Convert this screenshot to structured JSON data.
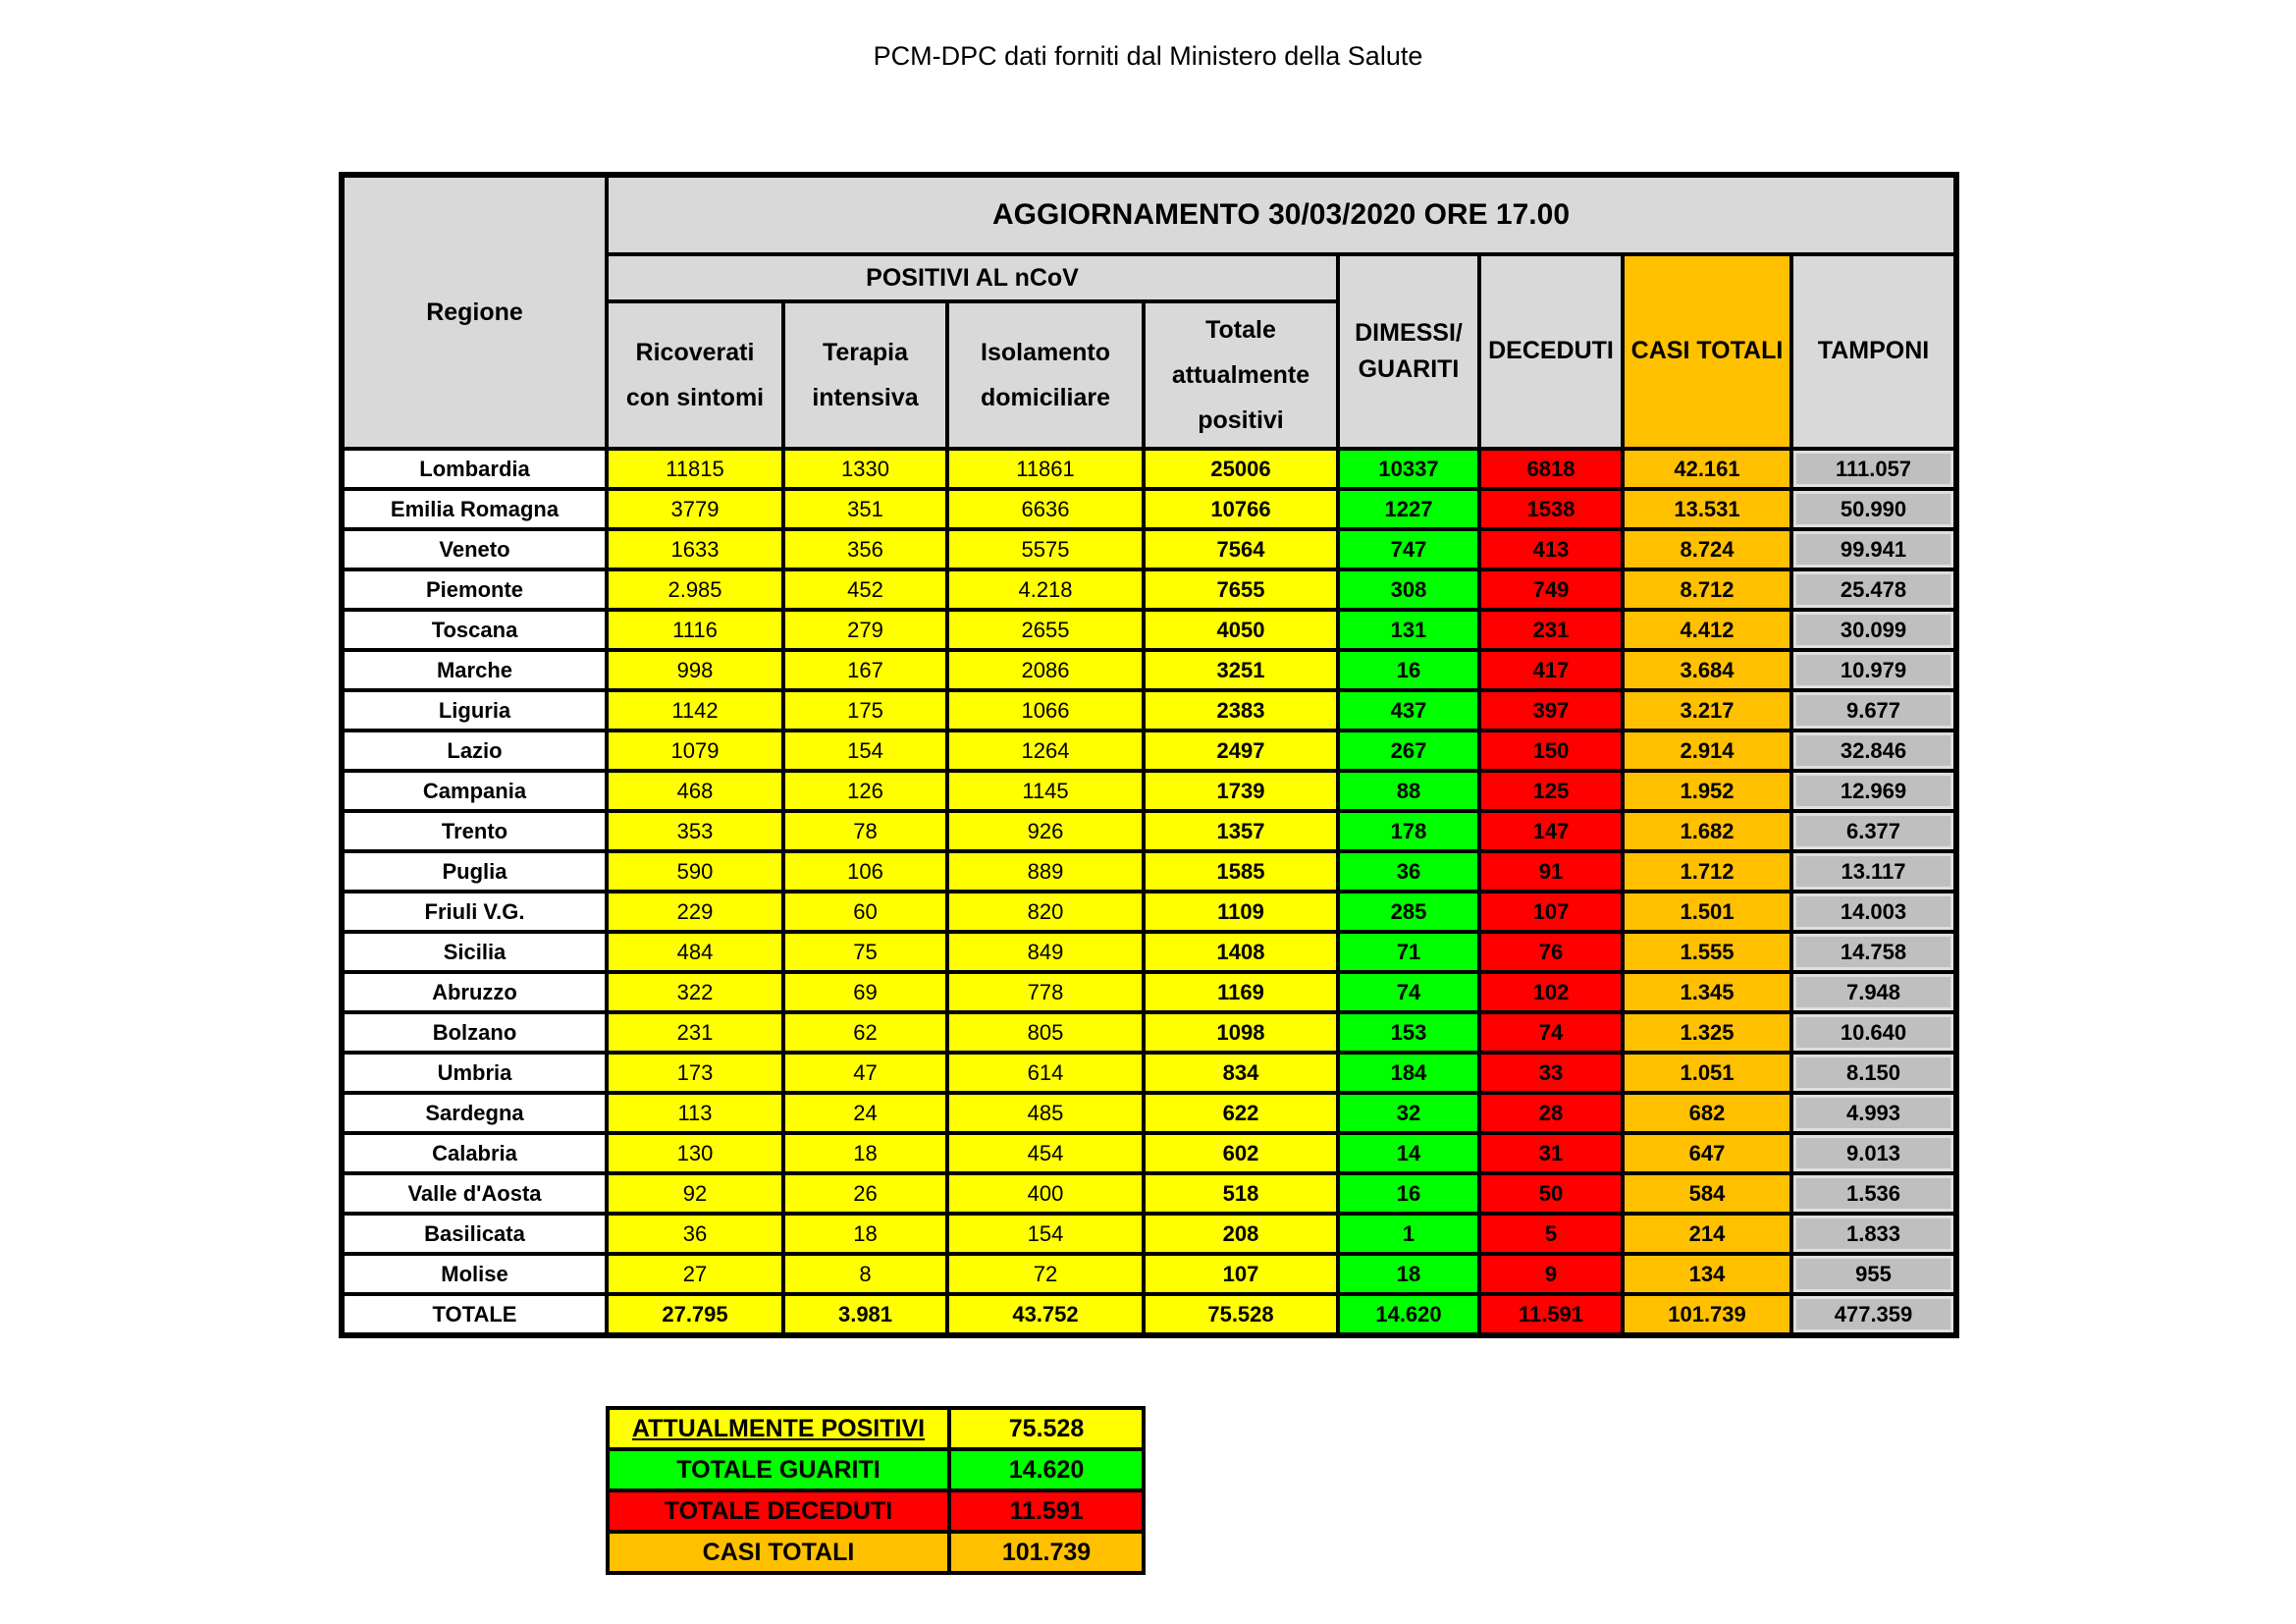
{
  "title": "PCM-DPC dati forniti dal Ministero della Salute",
  "table": {
    "update_header": "AGGIORNAMENTO 30/03/2020 ORE 17.00",
    "region_header": "Regione",
    "positivi_group_header": "POSITIVI AL nCoV",
    "subheaders": {
      "ricoverati": "Ricoverati\ncon sintomi",
      "terapia": "Terapia\nintensiva",
      "isolamento": "Isolamento\ndomiciliare",
      "totale_positivi": "Totale\nattualmente\npositivi",
      "dimessi": "DIMESSI/\nGUARITI",
      "deceduti": "DECEDUTI",
      "casi_totali": "CASI TOTALI",
      "tamponi": "TAMPONI"
    },
    "rows": [
      {
        "region": "Lombardia",
        "values": [
          "11815",
          "1330",
          "11861",
          "25006",
          "10337",
          "6818",
          "42.161",
          "111.057"
        ]
      },
      {
        "region": "Emilia Romagna",
        "values": [
          "3779",
          "351",
          "6636",
          "10766",
          "1227",
          "1538",
          "13.531",
          "50.990"
        ]
      },
      {
        "region": "Veneto",
        "values": [
          "1633",
          "356",
          "5575",
          "7564",
          "747",
          "413",
          "8.724",
          "99.941"
        ]
      },
      {
        "region": "Piemonte",
        "values": [
          "2.985",
          "452",
          "4.218",
          "7655",
          "308",
          "749",
          "8.712",
          "25.478"
        ]
      },
      {
        "region": "Toscana",
        "values": [
          "1116",
          "279",
          "2655",
          "4050",
          "131",
          "231",
          "4.412",
          "30.099"
        ]
      },
      {
        "region": "Marche",
        "values": [
          "998",
          "167",
          "2086",
          "3251",
          "16",
          "417",
          "3.684",
          "10.979"
        ]
      },
      {
        "region": "Liguria",
        "values": [
          "1142",
          "175",
          "1066",
          "2383",
          "437",
          "397",
          "3.217",
          "9.677"
        ]
      },
      {
        "region": "Lazio",
        "values": [
          "1079",
          "154",
          "1264",
          "2497",
          "267",
          "150",
          "2.914",
          "32.846"
        ]
      },
      {
        "region": "Campania",
        "values": [
          "468",
          "126",
          "1145",
          "1739",
          "88",
          "125",
          "1.952",
          "12.969"
        ]
      },
      {
        "region": "Trento",
        "values": [
          "353",
          "78",
          "926",
          "1357",
          "178",
          "147",
          "1.682",
          "6.377"
        ]
      },
      {
        "region": "Puglia",
        "values": [
          "590",
          "106",
          "889",
          "1585",
          "36",
          "91",
          "1.712",
          "13.117"
        ]
      },
      {
        "region": "Friuli V.G.",
        "values": [
          "229",
          "60",
          "820",
          "1109",
          "285",
          "107",
          "1.501",
          "14.003"
        ]
      },
      {
        "region": "Sicilia",
        "values": [
          "484",
          "75",
          "849",
          "1408",
          "71",
          "76",
          "1.555",
          "14.758"
        ]
      },
      {
        "region": "Abruzzo",
        "values": [
          "322",
          "69",
          "778",
          "1169",
          "74",
          "102",
          "1.345",
          "7.948"
        ]
      },
      {
        "region": "Bolzano",
        "values": [
          "231",
          "62",
          "805",
          "1098",
          "153",
          "74",
          "1.325",
          "10.640"
        ]
      },
      {
        "region": "Umbria",
        "values": [
          "173",
          "47",
          "614",
          "834",
          "184",
          "33",
          "1.051",
          "8.150"
        ]
      },
      {
        "region": "Sardegna",
        "values": [
          "113",
          "24",
          "485",
          "622",
          "32",
          "28",
          "682",
          "4.993"
        ]
      },
      {
        "region": "Calabria",
        "values": [
          "130",
          "18",
          "454",
          "602",
          "14",
          "31",
          "647",
          "9.013"
        ]
      },
      {
        "region": "Valle d'Aosta",
        "values": [
          "92",
          "26",
          "400",
          "518",
          "16",
          "50",
          "584",
          "1.536"
        ]
      },
      {
        "region": "Basilicata",
        "values": [
          "36",
          "18",
          "154",
          "208",
          "1",
          "5",
          "214",
          "1.833"
        ]
      },
      {
        "region": "Molise",
        "values": [
          "27",
          "8",
          "72",
          "107",
          "18",
          "9",
          "134",
          "955"
        ]
      }
    ],
    "totale_row": {
      "region": "TOTALE",
      "values": [
        "27.795",
        "3.981",
        "43.752",
        "75.528",
        "14.620",
        "11.591",
        "101.739",
        "477.359"
      ]
    }
  },
  "legend": {
    "rows": [
      {
        "label": "ATTUALMENTE POSITIVI",
        "value": "75.528",
        "color": "yellow",
        "underline": true
      },
      {
        "label": "TOTALE GUARITI",
        "value": "14.620",
        "color": "green",
        "underline": false
      },
      {
        "label": "TOTALE DECEDUTI",
        "value": "11.591",
        "color": "red",
        "underline": false
      },
      {
        "label": "CASI TOTALI",
        "value": "101.739",
        "color": "orange",
        "underline": false
      }
    ]
  },
  "colors": {
    "positivi_yellow": "#FFFF00",
    "guariti_green": "#00FF00",
    "deceduti_red": "#FF0000",
    "casi_totali_orange": "#FFC000",
    "header_grey": "#D9D9D9",
    "tamponi_grey": "#BFBFBF",
    "grid_black": "#000000"
  }
}
